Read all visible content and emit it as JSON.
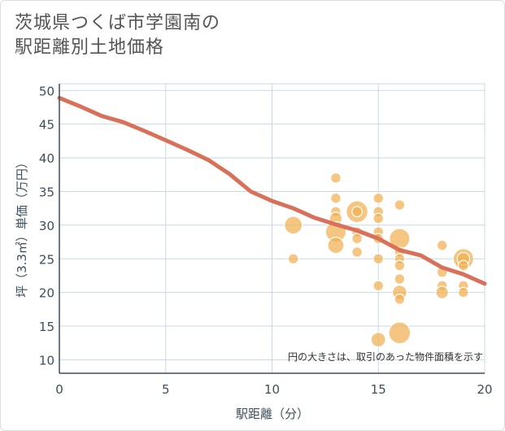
{
  "title_lines": [
    "茨城県つくば市学園南の",
    "駅距離別土地価格"
  ],
  "chart_data": {
    "type": "scatter",
    "title": "茨城県つくば市学園南の駅距離別土地価格",
    "xlabel": "駅距離（分）",
    "ylabel": "坪（3.3㎡）単価（万円）",
    "xlim": [
      0,
      20
    ],
    "ylim": [
      8,
      51
    ],
    "x_ticks": [
      0,
      5,
      10,
      15,
      20
    ],
    "y_ticks": [
      10,
      15,
      20,
      25,
      30,
      35,
      40,
      45,
      50
    ],
    "grid": true,
    "annotation": "円の大きさは、取引のあった物件面積を示す",
    "colors": {
      "bubble": "#f0b050",
      "trend": "#d9705a",
      "grid": "#c8d8e6",
      "axis": "#3d4f5c"
    },
    "points": [
      {
        "x": 11,
        "y": 30,
        "size": 3
      },
      {
        "x": 11,
        "y": 25,
        "size": 1
      },
      {
        "x": 13,
        "y": 37,
        "size": 1
      },
      {
        "x": 13,
        "y": 34,
        "size": 1
      },
      {
        "x": 13,
        "y": 32,
        "size": 1
      },
      {
        "x": 13,
        "y": 31,
        "size": 1.5
      },
      {
        "x": 13,
        "y": 29,
        "size": 4
      },
      {
        "x": 13,
        "y": 27,
        "size": 2.5
      },
      {
        "x": 14,
        "y": 32,
        "size": 4.5
      },
      {
        "x": 14,
        "y": 32,
        "size": 1
      },
      {
        "x": 14,
        "y": 29,
        "size": 1
      },
      {
        "x": 14,
        "y": 28,
        "size": 1
      },
      {
        "x": 14,
        "y": 26,
        "size": 1
      },
      {
        "x": 15,
        "y": 34,
        "size": 1
      },
      {
        "x": 15,
        "y": 32,
        "size": 1
      },
      {
        "x": 15,
        "y": 31,
        "size": 1
      },
      {
        "x": 15,
        "y": 29,
        "size": 1
      },
      {
        "x": 15,
        "y": 28,
        "size": 1
      },
      {
        "x": 15,
        "y": 25,
        "size": 1
      },
      {
        "x": 15,
        "y": 21,
        "size": 1
      },
      {
        "x": 15,
        "y": 13,
        "size": 2
      },
      {
        "x": 16,
        "y": 33,
        "size": 1
      },
      {
        "x": 16,
        "y": 28,
        "size": 4
      },
      {
        "x": 16,
        "y": 26,
        "size": 1
      },
      {
        "x": 16,
        "y": 25,
        "size": 1
      },
      {
        "x": 16,
        "y": 24,
        "size": 1
      },
      {
        "x": 16,
        "y": 22,
        "size": 1
      },
      {
        "x": 16,
        "y": 20,
        "size": 2
      },
      {
        "x": 16,
        "y": 19,
        "size": 1
      },
      {
        "x": 16,
        "y": 14,
        "size": 4.5
      },
      {
        "x": 18,
        "y": 27,
        "size": 1
      },
      {
        "x": 18,
        "y": 23,
        "size": 1
      },
      {
        "x": 18,
        "y": 21,
        "size": 1
      },
      {
        "x": 18,
        "y": 20,
        "size": 1.5
      },
      {
        "x": 19,
        "y": 25,
        "size": 4
      },
      {
        "x": 19,
        "y": 25,
        "size": 1.5
      },
      {
        "x": 19,
        "y": 24,
        "size": 1
      },
      {
        "x": 19,
        "y": 21,
        "size": 1
      },
      {
        "x": 19,
        "y": 20,
        "size": 1
      }
    ],
    "trend": {
      "x": [
        0,
        1,
        2,
        3,
        4,
        5,
        6,
        7,
        8,
        9,
        10,
        11,
        12,
        13,
        14,
        15,
        16,
        17,
        18,
        19,
        20
      ],
      "y": [
        48.9,
        47.6,
        46.2,
        45.3,
        44.0,
        42.6,
        41.2,
        39.7,
        37.6,
        35.0,
        33.6,
        32.5,
        31.1,
        30.1,
        29.2,
        28.0,
        26.3,
        25.5,
        23.7,
        22.7,
        21.3
      ]
    }
  }
}
